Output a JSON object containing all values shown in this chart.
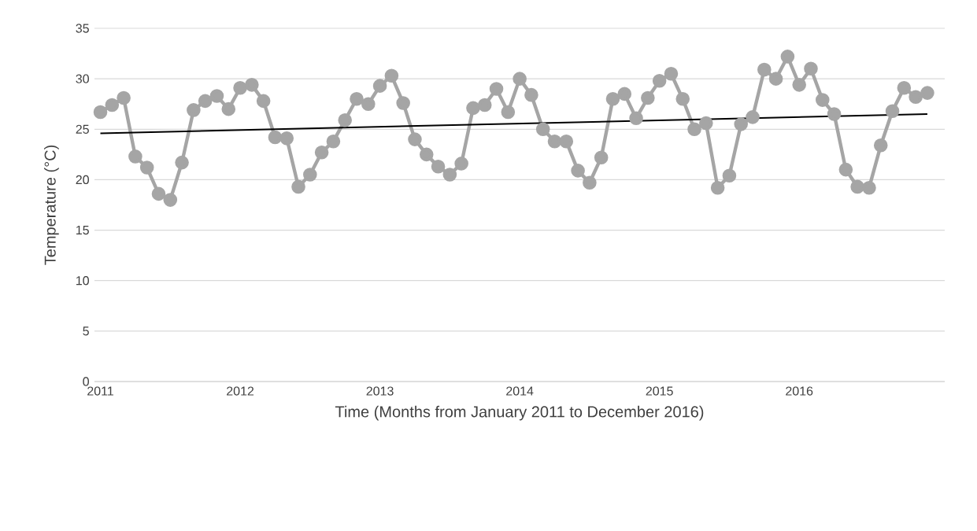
{
  "chart_data": {
    "type": "line",
    "xlabel": "Time (Months from January 2011 to December 2016)",
    "ylabel": "Temperature (°C)",
    "x": [
      "2011-01",
      "2011-02",
      "2011-03",
      "2011-04",
      "2011-05",
      "2011-06",
      "2011-07",
      "2011-08",
      "2011-09",
      "2011-10",
      "2011-11",
      "2011-12",
      "2012-01",
      "2012-02",
      "2012-03",
      "2012-04",
      "2012-05",
      "2012-06",
      "2012-07",
      "2012-08",
      "2012-09",
      "2012-10",
      "2012-11",
      "2012-12",
      "2013-01",
      "2013-02",
      "2013-03",
      "2013-04",
      "2013-05",
      "2013-06",
      "2013-07",
      "2013-08",
      "2013-09",
      "2013-10",
      "2013-11",
      "2013-12",
      "2014-01",
      "2014-02",
      "2014-03",
      "2014-04",
      "2014-05",
      "2014-06",
      "2014-07",
      "2014-08",
      "2014-09",
      "2014-10",
      "2014-11",
      "2014-12",
      "2015-01",
      "2015-02",
      "2015-03",
      "2015-04",
      "2015-05",
      "2015-06",
      "2015-07",
      "2015-08",
      "2015-09",
      "2015-10",
      "2015-11",
      "2015-12",
      "2016-01",
      "2016-02",
      "2016-03",
      "2016-04",
      "2016-05",
      "2016-06",
      "2016-07",
      "2016-08",
      "2016-09",
      "2016-10",
      "2016-11",
      "2016-12"
    ],
    "series": [
      {
        "color": "#a5a5a5",
        "values": [
          26.7,
          27.4,
          28.1,
          22.3,
          21.2,
          18.6,
          18.0,
          21.7,
          26.9,
          27.8,
          28.3,
          27.0,
          29.1,
          29.4,
          27.8,
          24.2,
          24.1,
          19.3,
          20.5,
          22.7,
          23.8,
          25.9,
          28.0,
          27.5,
          29.3,
          30.3,
          27.6,
          24.0,
          22.5,
          21.3,
          20.5,
          21.6,
          27.1,
          27.4,
          29.0,
          26.7,
          30.0,
          28.4,
          25.0,
          23.8,
          23.8,
          20.9,
          19.7,
          22.2,
          28.0,
          28.5,
          26.1,
          28.1,
          29.8,
          30.5,
          28.0,
          25.0,
          25.6,
          19.2,
          20.4,
          25.5,
          26.2,
          30.9,
          30.0,
          32.2,
          29.4,
          31.0,
          27.9,
          26.5,
          21.0,
          19.3,
          19.2,
          23.4,
          26.8,
          29.1,
          28.2,
          28.6
        ]
      },
      {
        "type": "line",
        "color": "#000000",
        "marker": "none",
        "x": [
          "2011-01",
          "2016-12"
        ],
        "values": [
          24.6,
          26.5
        ]
      }
    ],
    "marker": "circle",
    "line_style": "solid",
    "grid": "y",
    "legend": false,
    "xlim": [
      "2010-12-16",
      "2017-01-16"
    ],
    "xticks": [
      "2011",
      "2012",
      "2013",
      "2014",
      "2015",
      "2016"
    ],
    "ylim": [
      0,
      35
    ],
    "yticks": [
      0,
      5,
      10,
      15,
      20,
      25,
      30,
      35
    ]
  }
}
